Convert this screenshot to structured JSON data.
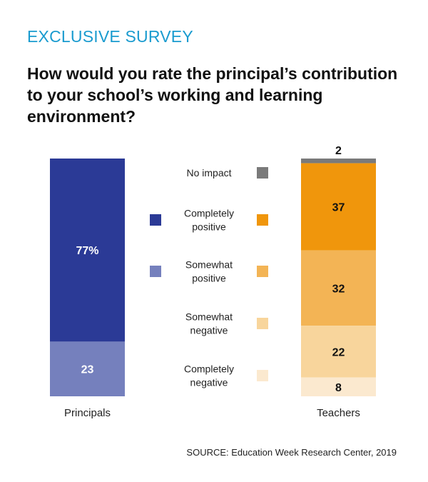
{
  "header": {
    "eyebrow": "EXCLUSIVE SURVEY",
    "title": "How would you rate the principal’s contribution to your school’s working and learning environment?"
  },
  "source": "SOURCE: Education Week Research Center, 2019",
  "chart_data": {
    "type": "bar",
    "stacked": true,
    "unit": "percent",
    "ylim": [
      0,
      100
    ],
    "categories": [
      "Principals",
      "Teachers"
    ],
    "series": [
      {
        "name": "No impact",
        "values": [
          0,
          2
        ],
        "color": "#7a7a7a",
        "labels": [
          "",
          "2"
        ],
        "label_color": "#111111"
      },
      {
        "name": "Completely positive",
        "values": [
          77,
          37
        ],
        "color_principals": "#2b3a96",
        "color": "#f0960c",
        "labels": [
          "77%",
          "37"
        ],
        "label_color": "#ffffff",
        "label_color_teachers": "#111111"
      },
      {
        "name": "Somewhat positive",
        "values": [
          23,
          32
        ],
        "color_principals": "#7580bd",
        "color": "#f3b455",
        "labels": [
          "23",
          "32"
        ],
        "label_color": "#ffffff",
        "label_color_teachers": "#111111"
      },
      {
        "name": "Somewhat negative",
        "values": [
          0,
          22
        ],
        "color": "#f8d59c",
        "labels": [
          "",
          "22"
        ],
        "label_color": "#111111"
      },
      {
        "name": "Completely negative",
        "values": [
          0,
          8
        ],
        "color": "#fbe9cf",
        "labels": [
          "",
          "8"
        ],
        "label_color": "#111111"
      }
    ],
    "legend": [
      {
        "lines": [
          "No impact"
        ],
        "principals_swatch": null,
        "teachers_swatch": "#7a7a7a"
      },
      {
        "lines": [
          "Completely",
          "positive"
        ],
        "principals_swatch": "#2b3a96",
        "teachers_swatch": "#f0960c"
      },
      {
        "lines": [
          "Somewhat",
          "positive"
        ],
        "principals_swatch": "#7580bd",
        "teachers_swatch": "#f3b455"
      },
      {
        "lines": [
          "Somewhat",
          "negative"
        ],
        "principals_swatch": null,
        "teachers_swatch": "#f8d59c"
      },
      {
        "lines": [
          "Completely",
          "negative"
        ],
        "principals_swatch": null,
        "teachers_swatch": "#fbe9cf"
      }
    ],
    "legend_placement": "center-between-bars",
    "grid": false
  }
}
